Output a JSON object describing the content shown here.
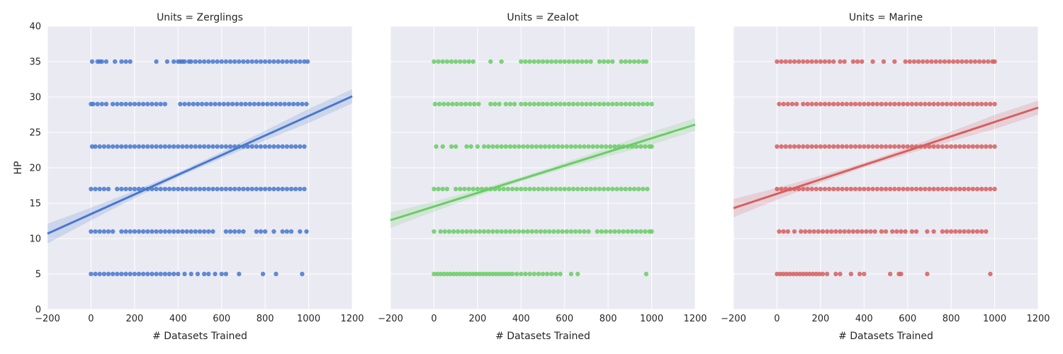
{
  "chart_data": [
    {
      "type": "scatter",
      "title": "Units = Zerglings",
      "xlabel": "# Datasets Trained",
      "ylabel": "HP",
      "xlim": [
        -200,
        1200
      ],
      "ylim": [
        0,
        40
      ],
      "xticks": [
        "−200",
        "0",
        "200",
        "400",
        "600",
        "800",
        "1000",
        "1200"
      ],
      "yticks": [
        "0",
        "5",
        "10",
        "15",
        "20",
        "25",
        "30",
        "35",
        "40"
      ],
      "grid": true,
      "color": "#4878cf",
      "hp_levels": [
        5,
        11,
        17,
        23,
        29,
        35
      ],
      "regression": {
        "x": [
          -200,
          1200
        ],
        "y": [
          10.7,
          30.1
        ],
        "ci_halfwidth_ends": [
          1.4,
          1.0
        ]
      },
      "series": [
        {
          "y": 35,
          "x": [
            5,
            30,
            40,
            50,
            70,
            110,
            140,
            160,
            180,
            300,
            350,
            380,
            400,
            410,
            420,
            430,
            450,
            460,
            480,
            500,
            520,
            540,
            560,
            580,
            600,
            620,
            640,
            660,
            680,
            700,
            720,
            740,
            760,
            780,
            800,
            820,
            840,
            860,
            880,
            900,
            920,
            940,
            960,
            980,
            995
          ]
        },
        {
          "y": 29,
          "x": [
            0,
            10,
            30,
            50,
            70,
            100,
            120,
            140,
            160,
            180,
            200,
            220,
            240,
            260,
            280,
            300,
            320,
            340,
            410,
            430,
            450,
            470,
            490,
            510,
            530,
            550,
            570,
            590,
            610,
            630,
            650,
            670,
            690,
            710,
            730,
            750,
            770,
            790,
            810,
            830,
            850,
            870,
            890,
            910,
            930,
            950,
            970,
            990
          ]
        },
        {
          "y": 23,
          "x": [
            5,
            20,
            40,
            60,
            80,
            100,
            120,
            140,
            160,
            180,
            200,
            220,
            240,
            260,
            280,
            300,
            320,
            340,
            360,
            380,
            400,
            420,
            440,
            460,
            480,
            500,
            520,
            540,
            560,
            580,
            600,
            620,
            640,
            660,
            680,
            700,
            720,
            740,
            760,
            780,
            800,
            820,
            840,
            860,
            880,
            900,
            920,
            940,
            960,
            980
          ]
        },
        {
          "y": 17,
          "x": [
            0,
            20,
            40,
            60,
            80,
            120,
            140,
            160,
            180,
            200,
            220,
            240,
            260,
            280,
            300,
            320,
            340,
            360,
            380,
            400,
            420,
            440,
            460,
            480,
            500,
            520,
            540,
            560,
            580,
            600,
            620,
            640,
            660,
            680,
            700,
            720,
            740,
            760,
            780,
            800,
            820,
            840,
            860,
            880,
            900,
            920,
            940,
            960,
            980
          ]
        },
        {
          "y": 11,
          "x": [
            0,
            20,
            40,
            60,
            80,
            100,
            140,
            160,
            180,
            200,
            220,
            240,
            260,
            280,
            300,
            320,
            340,
            360,
            380,
            400,
            420,
            440,
            460,
            480,
            500,
            520,
            540,
            560,
            620,
            640,
            660,
            680,
            700,
            760,
            780,
            800,
            840,
            880,
            900,
            920,
            960,
            990
          ]
        },
        {
          "y": 5,
          "x": [
            0,
            20,
            40,
            60,
            80,
            100,
            120,
            140,
            160,
            180,
            200,
            220,
            240,
            260,
            280,
            300,
            320,
            340,
            360,
            380,
            400,
            430,
            460,
            490,
            520,
            540,
            570,
            600,
            620,
            680,
            790,
            850,
            970
          ]
        }
      ]
    },
    {
      "type": "scatter",
      "title": "Units = Zealot",
      "xlabel": "# Datasets Trained",
      "ylabel": "",
      "xlim": [
        -200,
        1200
      ],
      "ylim": [
        0,
        40
      ],
      "xticks": [
        "−200",
        "0",
        "200",
        "400",
        "600",
        "800",
        "1000",
        "1200"
      ],
      "yticks": [],
      "grid": true,
      "color": "#6acc65",
      "hp_levels": [
        5,
        11,
        17,
        23,
        29,
        35
      ],
      "regression": {
        "x": [
          -200,
          1200
        ],
        "y": [
          12.6,
          26.1
        ],
        "ci_halfwidth_ends": [
          1.1,
          0.9
        ]
      },
      "series": [
        {
          "y": 35,
          "x": [
            0,
            20,
            40,
            60,
            80,
            100,
            120,
            140,
            160,
            180,
            260,
            310,
            400,
            420,
            440,
            460,
            480,
            500,
            520,
            540,
            560,
            580,
            600,
            620,
            640,
            660,
            680,
            700,
            720,
            760,
            780,
            800,
            820,
            860,
            880,
            900,
            920,
            940,
            960,
            975
          ]
        },
        {
          "y": 29,
          "x": [
            5,
            25,
            45,
            65,
            85,
            105,
            125,
            145,
            165,
            185,
            205,
            260,
            280,
            300,
            330,
            350,
            370,
            400,
            420,
            440,
            460,
            480,
            500,
            520,
            540,
            560,
            580,
            600,
            620,
            640,
            660,
            680,
            700,
            720,
            740,
            760,
            780,
            800,
            820,
            840,
            860,
            880,
            900,
            920,
            940,
            960,
            980,
            1000
          ]
        },
        {
          "y": 23,
          "x": [
            10,
            40,
            80,
            100,
            150,
            170,
            200,
            230,
            250,
            270,
            290,
            310,
            330,
            350,
            370,
            390,
            410,
            430,
            450,
            470,
            490,
            510,
            530,
            550,
            570,
            590,
            610,
            630,
            650,
            670,
            690,
            710,
            730,
            750,
            770,
            790,
            810,
            830,
            850,
            870,
            890,
            910,
            930,
            950,
            970,
            990,
            1000
          ]
        },
        {
          "y": 17,
          "x": [
            0,
            20,
            40,
            60,
            100,
            120,
            140,
            160,
            180,
            200,
            220,
            240,
            260,
            280,
            300,
            320,
            340,
            360,
            380,
            400,
            420,
            440,
            460,
            480,
            500,
            520,
            540,
            560,
            580,
            600,
            620,
            640,
            660,
            680,
            700,
            720,
            740,
            760,
            780,
            800,
            820,
            840,
            860,
            880,
            900,
            920,
            940,
            960,
            980
          ]
        },
        {
          "y": 11,
          "x": [
            0,
            30,
            50,
            70,
            90,
            110,
            130,
            150,
            170,
            190,
            210,
            230,
            250,
            270,
            290,
            310,
            330,
            350,
            370,
            390,
            410,
            430,
            450,
            470,
            490,
            510,
            530,
            550,
            570,
            590,
            610,
            630,
            650,
            670,
            690,
            710,
            750,
            770,
            790,
            810,
            830,
            850,
            870,
            890,
            910,
            930,
            950,
            970,
            990,
            1000
          ]
        },
        {
          "y": 5,
          "x": [
            0,
            15,
            30,
            45,
            60,
            75,
            90,
            105,
            120,
            135,
            150,
            165,
            180,
            195,
            210,
            225,
            240,
            255,
            270,
            285,
            300,
            315,
            330,
            345,
            360,
            380,
            400,
            420,
            440,
            460,
            480,
            500,
            520,
            540,
            560,
            580,
            630,
            660,
            975
          ]
        }
      ]
    },
    {
      "type": "scatter",
      "title": "Units = Marine",
      "xlabel": "# Datasets Trained",
      "ylabel": "",
      "xlim": [
        -200,
        1200
      ],
      "ylim": [
        0,
        40
      ],
      "xticks": [
        "−200",
        "0",
        "200",
        "400",
        "600",
        "800",
        "1000",
        "1200"
      ],
      "yticks": [],
      "grid": true,
      "color": "#d65f5f",
      "hp_levels": [
        5,
        11,
        17,
        23,
        29,
        35
      ],
      "regression": {
        "x": [
          -200,
          1200
        ],
        "y": [
          14.3,
          28.5
        ],
        "ci_halfwidth_ends": [
          1.3,
          1.0
        ]
      },
      "series": [
        {
          "y": 35,
          "x": [
            0,
            20,
            40,
            60,
            80,
            100,
            120,
            140,
            160,
            180,
            200,
            220,
            240,
            260,
            290,
            310,
            350,
            370,
            390,
            440,
            490,
            540,
            590,
            610,
            630,
            650,
            670,
            690,
            710,
            730,
            750,
            770,
            790,
            810,
            830,
            850,
            870,
            890,
            910,
            930,
            950,
            970,
            990,
            1000
          ]
        },
        {
          "y": 29,
          "x": [
            10,
            30,
            50,
            70,
            90,
            120,
            140,
            160,
            180,
            200,
            220,
            240,
            260,
            280,
            300,
            320,
            340,
            360,
            380,
            400,
            420,
            440,
            460,
            480,
            500,
            520,
            540,
            560,
            580,
            600,
            620,
            640,
            660,
            680,
            700,
            720,
            740,
            760,
            780,
            800,
            820,
            840,
            860,
            880,
            900,
            920,
            940,
            960,
            980,
            1000
          ]
        },
        {
          "y": 23,
          "x": [
            0,
            20,
            40,
            60,
            80,
            100,
            120,
            140,
            160,
            180,
            200,
            220,
            240,
            260,
            280,
            300,
            320,
            340,
            360,
            380,
            400,
            420,
            440,
            460,
            480,
            500,
            520,
            540,
            560,
            580,
            600,
            620,
            640,
            660,
            680,
            700,
            720,
            740,
            760,
            780,
            800,
            820,
            840,
            860,
            880,
            900,
            920,
            940,
            960,
            980,
            1000
          ]
        },
        {
          "y": 17,
          "x": [
            0,
            20,
            40,
            60,
            80,
            100,
            120,
            140,
            160,
            180,
            200,
            220,
            240,
            260,
            280,
            300,
            320,
            340,
            360,
            380,
            400,
            420,
            440,
            460,
            480,
            500,
            520,
            540,
            560,
            580,
            600,
            620,
            640,
            660,
            680,
            700,
            720,
            740,
            760,
            780,
            800,
            820,
            840,
            860,
            880,
            900,
            920,
            940,
            960,
            980,
            1000
          ]
        },
        {
          "y": 11,
          "x": [
            10,
            30,
            50,
            80,
            110,
            130,
            150,
            170,
            190,
            210,
            230,
            250,
            270,
            290,
            310,
            330,
            350,
            370,
            390,
            410,
            430,
            450,
            480,
            500,
            530,
            550,
            570,
            590,
            620,
            640,
            690,
            720,
            760,
            780,
            800,
            820,
            840,
            860,
            880,
            900,
            920,
            940,
            960
          ]
        },
        {
          "y": 5,
          "x": [
            0,
            15,
            30,
            45,
            60,
            75,
            90,
            105,
            120,
            135,
            150,
            165,
            180,
            195,
            210,
            230,
            270,
            290,
            340,
            380,
            400,
            520,
            560,
            570,
            690,
            980
          ]
        }
      ]
    }
  ]
}
